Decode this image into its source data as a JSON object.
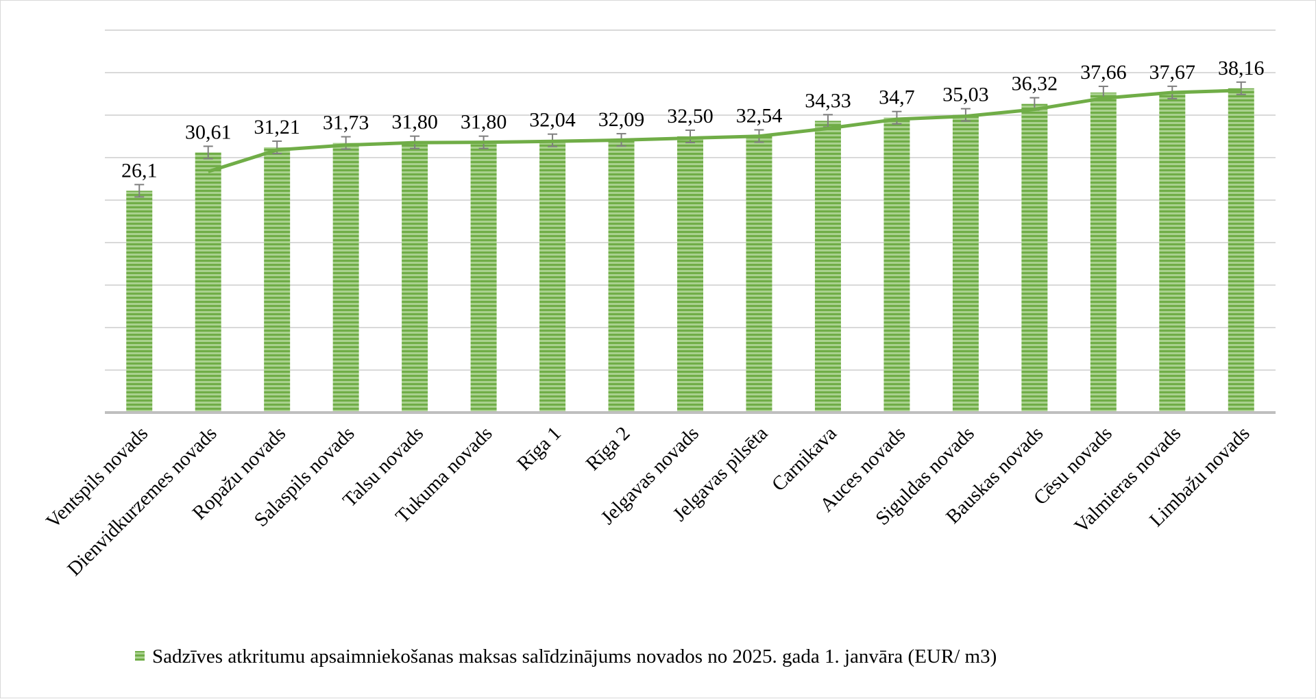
{
  "colors": {
    "bar": "#70ad47",
    "bar_stripe": "#a9d18e",
    "line": "#70ad47",
    "error_bar": "#7f7f7f",
    "grid": "#d9d9d9",
    "axis": "#bfbfbf"
  },
  "chart_data": {
    "type": "bar",
    "categories": [
      "Ventspils novads",
      "Dienvidkurzemes novads",
      "Ropažu  novads",
      "Salaspils novads",
      "Talsu novads",
      "Tukuma novads",
      "Rīga 1",
      "Rīga 2",
      "Jelgavas novads",
      "Jelgavas pilsēta",
      "Carnikava",
      "Auces novads",
      "Siguldas novads",
      "Bauskas novads",
      "Cēsu novads",
      "Valmieras novads",
      "Limbažu novads"
    ],
    "series": [
      {
        "name": "Sadzīves atkritumu apsaimniekošanas maksas salīdzinājums novados no 2025. gada 1. janvāra (EUR/ m3)",
        "values": [
          26.1,
          30.61,
          31.21,
          31.73,
          31.8,
          31.8,
          32.04,
          32.09,
          32.5,
          32.54,
          34.33,
          34.7,
          35.03,
          36.32,
          37.66,
          37.67,
          38.16
        ]
      }
    ],
    "value_labels": [
      "26,1",
      "30,61",
      "31,21",
      "31,73",
      "31,80",
      "31,80",
      "32,04",
      "32,09",
      "32,50",
      "32,54",
      "34,33",
      "34,7",
      "35,03",
      "36,32",
      "37,66",
      "37,67",
      "38,16"
    ],
    "trendline": {
      "type": "moving_average",
      "period": 2,
      "color": "#70ad47"
    },
    "error_bars": true,
    "ylim": [
      0,
      45
    ],
    "gridlines": true,
    "legend": "bottom",
    "title": "",
    "xlabel": "",
    "ylabel": ""
  }
}
